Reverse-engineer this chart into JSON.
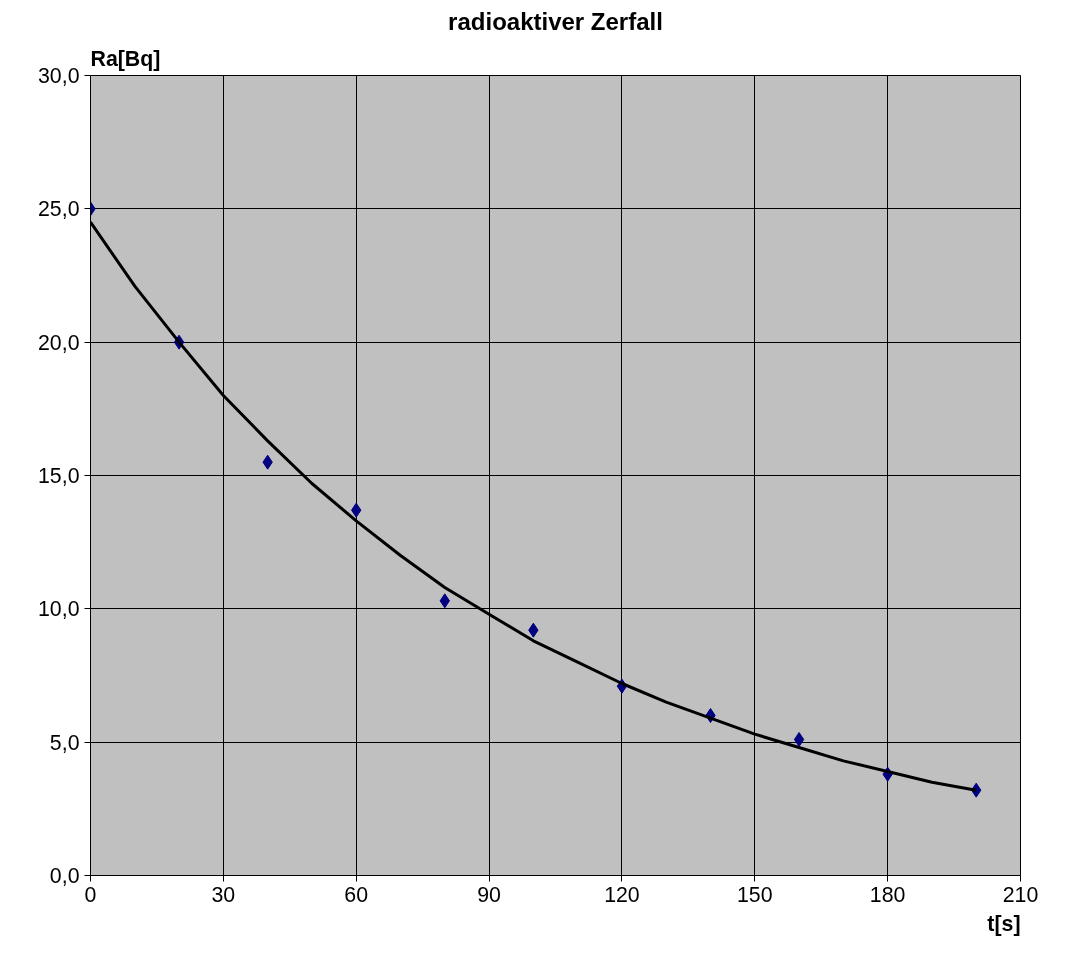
{
  "chart_data": {
    "type": "scatter",
    "title": "radioaktiver Zerfall",
    "xlabel": "t[s]",
    "ylabel": "Ra[Bq]",
    "x": [
      0,
      20,
      40,
      60,
      80,
      100,
      120,
      140,
      160,
      180,
      200
    ],
    "series": [
      {
        "color": "#000080",
        "marker": "diamond",
        "values": [
          25.0,
          20.0,
          15.5,
          13.7,
          10.3,
          9.2,
          7.1,
          6.0,
          5.1,
          3.8,
          3.2
        ]
      },
      {
        "type": "line",
        "color": "#000000",
        "x": [
          0,
          10,
          20,
          30,
          40,
          50,
          60,
          70,
          80,
          90,
          100,
          110,
          120,
          130,
          140,
          150,
          160,
          170,
          180,
          190,
          200
        ],
        "values": [
          24.5,
          22.1,
          20.0,
          18.0,
          16.3,
          14.7,
          13.3,
          12.0,
          10.8,
          9.8,
          8.8,
          8.0,
          7.2,
          6.5,
          5.9,
          5.3,
          4.8,
          4.3,
          3.9,
          3.5,
          3.2
        ]
      }
    ],
    "xlim": [
      0,
      210
    ],
    "xticks": [
      0,
      30,
      60,
      90,
      120,
      150,
      180,
      210
    ],
    "ylim": [
      0,
      30
    ],
    "yticks": [
      {
        "value": 0,
        "label": "0,0"
      },
      {
        "value": 5,
        "label": "5,0"
      },
      {
        "value": 10,
        "label": "10,0"
      },
      {
        "value": 15,
        "label": "15,0"
      },
      {
        "value": 20,
        "label": "20,0"
      },
      {
        "value": 25,
        "label": "25,0"
      },
      {
        "value": 30,
        "label": "30,0"
      }
    ],
    "grid": true
  }
}
